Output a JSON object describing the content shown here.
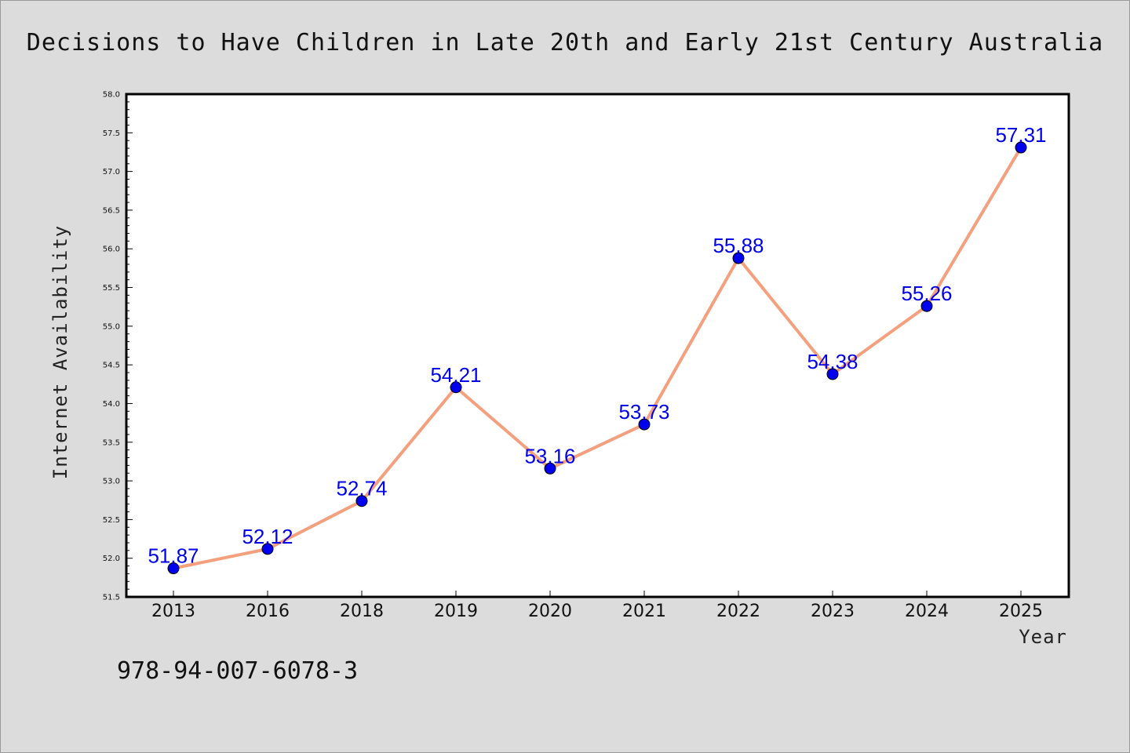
{
  "chart_data": {
    "type": "line",
    "title": "Decisions to Have Children in Late 20th and Early 21st Century Australia",
    "xlabel": "Year",
    "ylabel": "Internet Availability",
    "categories": [
      "2013",
      "2016",
      "2018",
      "2019",
      "2020",
      "2021",
      "2022",
      "2023",
      "2024",
      "2025"
    ],
    "series": [
      {
        "values": [
          51.87,
          52.12,
          52.74,
          54.21,
          53.16,
          53.73,
          55.88,
          54.38,
          55.26,
          57.31
        ],
        "line_color": "#f4a07e",
        "marker_color": "#0000ee"
      }
    ],
    "data_labels": [
      "51.87",
      "52.12",
      "52.74",
      "54.21",
      "53.16",
      "53.73",
      "55.88",
      "54.38",
      "55.26",
      "57.31"
    ],
    "ylim": [
      51.5,
      58.0
    ],
    "yticks": [
      "51.5",
      "52.0",
      "52.5",
      "53.0",
      "53.5",
      "54.0",
      "54.5",
      "55.0",
      "55.5",
      "56.0",
      "56.5",
      "57.0",
      "57.5",
      "58.0"
    ],
    "grid": false,
    "legend": "none"
  },
  "footer": {
    "isbn": "978-94-007-6078-3"
  }
}
